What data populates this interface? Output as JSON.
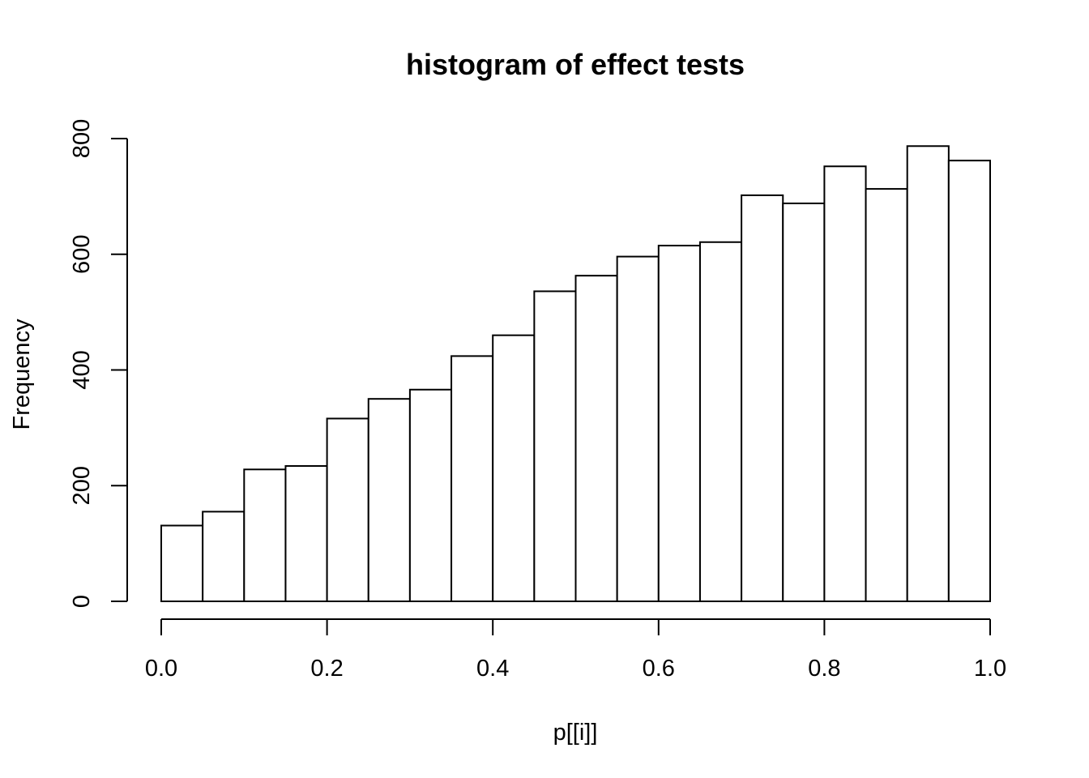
{
  "chart_data": {
    "type": "bar",
    "title": "histogram of effect tests",
    "xlabel": "p[[i]]",
    "ylabel": "Frequency",
    "xlim": [
      0,
      1
    ],
    "ylim": [
      0,
      800
    ],
    "bin_edges": [
      0.0,
      0.05,
      0.1,
      0.15,
      0.2,
      0.25,
      0.3,
      0.35,
      0.4,
      0.45,
      0.5,
      0.55,
      0.6,
      0.65,
      0.7,
      0.75,
      0.8,
      0.85,
      0.9,
      0.95,
      1.0
    ],
    "values": [
      131,
      155,
      228,
      234,
      316,
      350,
      366,
      424,
      460,
      536,
      563,
      596,
      615,
      621,
      702,
      688,
      752,
      713,
      787,
      762
    ],
    "x_ticks": [
      "0.0",
      "0.2",
      "0.4",
      "0.6",
      "0.8",
      "1.0"
    ],
    "y_ticks": [
      "0",
      "200",
      "400",
      "600",
      "800"
    ],
    "grid": false,
    "colors": {
      "bar_fill": "#ffffff",
      "bar_stroke": "#000000"
    }
  }
}
